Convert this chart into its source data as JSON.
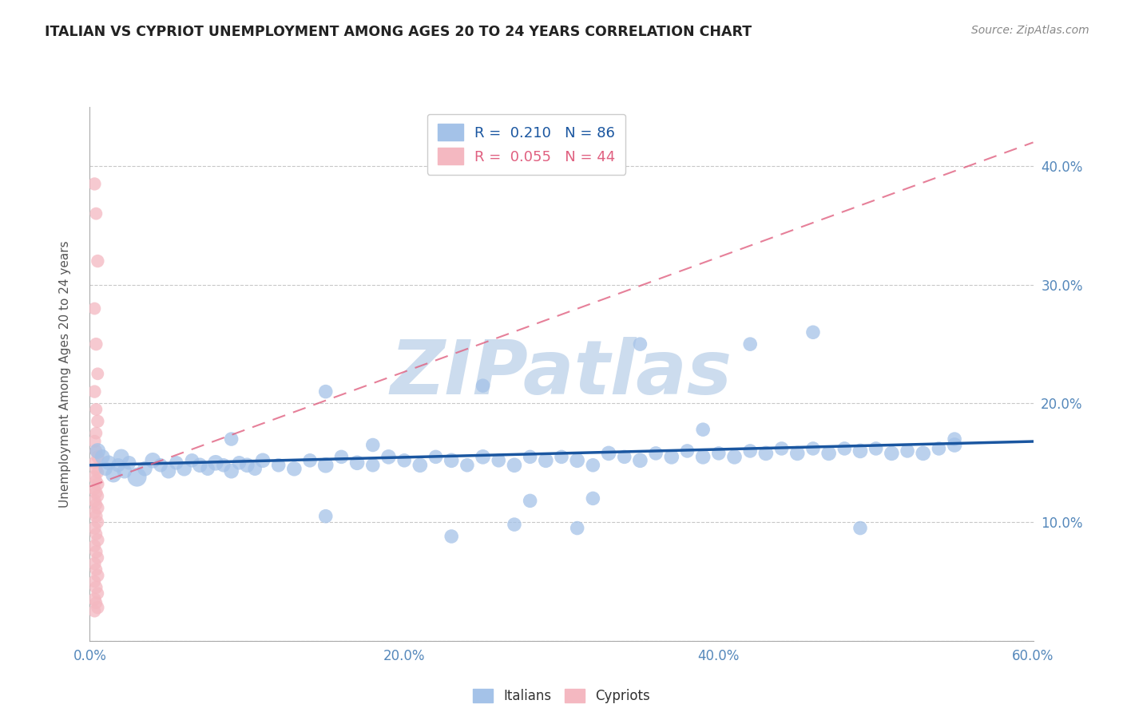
{
  "title": "ITALIAN VS CYPRIOT UNEMPLOYMENT AMONG AGES 20 TO 24 YEARS CORRELATION CHART",
  "source_text": "Source: ZipAtlas.com",
  "ylabel": "Unemployment Among Ages 20 to 24 years",
  "xlim": [
    0.0,
    0.6
  ],
  "ylim": [
    0.0,
    0.45
  ],
  "xticks": [
    0.0,
    0.1,
    0.2,
    0.3,
    0.4,
    0.5,
    0.6
  ],
  "xticklabels": [
    "0.0%",
    "",
    "20.0%",
    "",
    "40.0%",
    "",
    "60.0%"
  ],
  "yticks": [
    0.1,
    0.2,
    0.3,
    0.4
  ],
  "yticklabels": [
    "10.0%",
    "20.0%",
    "30.0%",
    "40.0%"
  ],
  "italian_R": 0.21,
  "italian_N": 86,
  "cypriot_R": 0.055,
  "cypriot_N": 44,
  "italian_color": "#a4c2e8",
  "cypriot_color": "#f4b8c1",
  "italian_line_color": "#1a56a0",
  "cypriot_line_color": "#e06080",
  "grid_color": "#c8c8c8",
  "background_color": "#ffffff",
  "watermark_color": "#ccdcee",
  "title_color": "#222222",
  "axis_label_color": "#555555",
  "tick_color": "#5588bb",
  "italians_scatter_x": [
    0.005,
    0.008,
    0.01,
    0.012,
    0.015,
    0.018,
    0.02,
    0.022,
    0.025,
    0.03,
    0.035,
    0.04,
    0.045,
    0.05,
    0.055,
    0.06,
    0.065,
    0.07,
    0.075,
    0.08,
    0.085,
    0.09,
    0.095,
    0.1,
    0.105,
    0.11,
    0.12,
    0.13,
    0.14,
    0.15,
    0.16,
    0.17,
    0.18,
    0.19,
    0.2,
    0.21,
    0.22,
    0.23,
    0.24,
    0.25,
    0.26,
    0.27,
    0.28,
    0.29,
    0.3,
    0.31,
    0.32,
    0.33,
    0.34,
    0.35,
    0.36,
    0.37,
    0.38,
    0.39,
    0.4,
    0.41,
    0.42,
    0.43,
    0.44,
    0.45,
    0.46,
    0.47,
    0.48,
    0.49,
    0.5,
    0.51,
    0.52,
    0.53,
    0.54,
    0.55,
    0.32,
    0.28,
    0.35,
    0.18,
    0.25,
    0.15,
    0.42,
    0.39,
    0.31,
    0.27,
    0.23,
    0.46,
    0.55,
    0.49,
    0.15,
    0.09
  ],
  "italians_scatter_y": [
    0.16,
    0.155,
    0.145,
    0.15,
    0.14,
    0.148,
    0.155,
    0.143,
    0.15,
    0.138,
    0.145,
    0.152,
    0.148,
    0.143,
    0.15,
    0.145,
    0.152,
    0.148,
    0.145,
    0.15,
    0.148,
    0.143,
    0.15,
    0.148,
    0.145,
    0.152,
    0.148,
    0.145,
    0.152,
    0.148,
    0.155,
    0.15,
    0.148,
    0.155,
    0.152,
    0.148,
    0.155,
    0.152,
    0.148,
    0.155,
    0.152,
    0.148,
    0.155,
    0.152,
    0.155,
    0.152,
    0.148,
    0.158,
    0.155,
    0.152,
    0.158,
    0.155,
    0.16,
    0.155,
    0.158,
    0.155,
    0.16,
    0.158,
    0.162,
    0.158,
    0.162,
    0.158,
    0.162,
    0.16,
    0.162,
    0.158,
    0.16,
    0.158,
    0.162,
    0.165,
    0.12,
    0.118,
    0.25,
    0.165,
    0.215,
    0.21,
    0.25,
    0.178,
    0.095,
    0.098,
    0.088,
    0.26,
    0.17,
    0.095,
    0.105,
    0.17
  ],
  "italians_scatter_sizes": [
    200,
    180,
    160,
    180,
    200,
    160,
    200,
    180,
    160,
    300,
    180,
    200,
    160,
    180,
    160,
    180,
    160,
    180,
    160,
    200,
    160,
    180,
    160,
    180,
    160,
    180,
    160,
    180,
    160,
    200,
    160,
    180,
    160,
    180,
    160,
    180,
    160,
    180,
    160,
    180,
    160,
    180,
    160,
    180,
    160,
    180,
    160,
    180,
    160,
    180,
    160,
    180,
    160,
    180,
    160,
    180,
    160,
    180,
    160,
    180,
    160,
    180,
    160,
    180,
    160,
    180,
    160,
    180,
    160,
    180,
    160,
    160,
    160,
    160,
    160,
    160,
    160,
    160,
    160,
    160,
    160,
    160,
    160,
    160,
    160,
    160
  ],
  "cypriots_scatter_x": [
    0.003,
    0.004,
    0.005,
    0.003,
    0.004,
    0.005,
    0.003,
    0.004,
    0.005,
    0.004,
    0.003,
    0.004,
    0.005,
    0.003,
    0.004,
    0.005,
    0.003,
    0.004,
    0.005,
    0.003,
    0.004,
    0.005,
    0.003,
    0.004,
    0.005,
    0.003,
    0.004,
    0.005,
    0.003,
    0.004,
    0.005,
    0.003,
    0.004,
    0.005,
    0.003,
    0.004,
    0.005,
    0.003,
    0.004,
    0.005,
    0.003,
    0.004,
    0.005,
    0.003
  ],
  "cypriots_scatter_y": [
    0.385,
    0.36,
    0.32,
    0.28,
    0.25,
    0.225,
    0.21,
    0.195,
    0.185,
    0.175,
    0.168,
    0.16,
    0.155,
    0.15,
    0.145,
    0.142,
    0.138,
    0.135,
    0.132,
    0.128,
    0.125,
    0.122,
    0.118,
    0.115,
    0.112,
    0.108,
    0.105,
    0.1,
    0.095,
    0.09,
    0.085,
    0.08,
    0.075,
    0.07,
    0.065,
    0.06,
    0.055,
    0.05,
    0.045,
    0.04,
    0.035,
    0.032,
    0.028,
    0.025
  ],
  "cypriots_scatter_sizes": [
    140,
    130,
    140,
    130,
    140,
    130,
    140,
    130,
    140,
    130,
    140,
    130,
    140,
    130,
    140,
    130,
    140,
    130,
    140,
    130,
    140,
    130,
    140,
    130,
    140,
    130,
    140,
    130,
    140,
    130,
    140,
    130,
    140,
    130,
    140,
    130,
    140,
    130,
    140,
    130,
    140,
    130,
    140,
    130
  ],
  "italian_trendline_x": [
    0.0,
    0.6
  ],
  "italian_trendline_y": [
    0.148,
    0.168
  ],
  "cypriot_trendline_x": [
    0.0,
    0.6
  ],
  "cypriot_trendline_y": [
    0.13,
    0.42
  ]
}
